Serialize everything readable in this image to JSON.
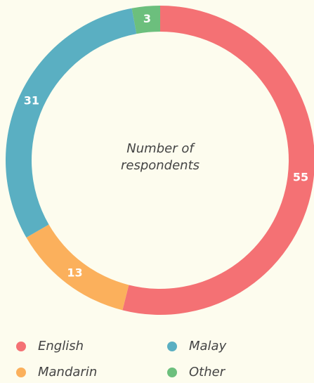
{
  "chart_data": {
    "type": "donut",
    "center_label": "Number of respondents",
    "categories": [
      "English",
      "Mandarin",
      "Malay",
      "Other"
    ],
    "values": [
      55,
      13,
      31,
      3
    ],
    "colors": [
      "#f47174",
      "#fbb05c",
      "#5aafc2",
      "#6cbf7d"
    ]
  }
}
